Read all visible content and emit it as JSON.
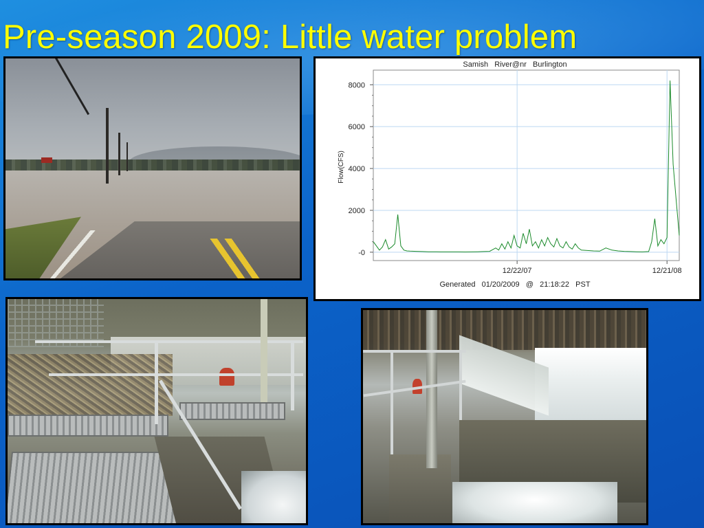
{
  "slide": {
    "title": "Pre-season 2009: Little water problem",
    "title_color": "#ffff00",
    "background_color": "#0b63c9"
  },
  "photos": [
    {
      "name": "flooded-road-photo"
    },
    {
      "name": "fish-ladder-walkway-photo"
    },
    {
      "name": "weir-overflow-photo"
    }
  ],
  "chart_data": {
    "type": "line",
    "title": "Samish   River@nr   Burlington",
    "ylabel": "Flow(CFS)",
    "xlabel": "",
    "footer": "Generated   01/20/2009   @   21:18:22   PST",
    "ylim": [
      -400,
      8700
    ],
    "yticks": [
      {
        "value": 0,
        "label": "-0"
      },
      {
        "value": 2000,
        "label": "2000"
      },
      {
        "value": 4000,
        "label": "4000"
      },
      {
        "value": 6000,
        "label": "6000"
      },
      {
        "value": 8000,
        "label": "8000"
      }
    ],
    "xlim": [
      0,
      100
    ],
    "xticks": [
      {
        "value": 47,
        "label": "12/22/07"
      },
      {
        "value": 96,
        "label": "12/21/08"
      }
    ],
    "grid": true,
    "line_color": "#1a8a2a",
    "grid_color": "#bcd8f2",
    "series": [
      {
        "x": [
          0,
          1,
          2,
          3,
          4,
          5,
          6,
          7,
          8,
          9,
          10,
          11,
          12,
          14,
          16,
          18,
          20,
          22,
          24,
          26,
          28,
          30,
          32,
          34,
          36,
          38,
          40,
          41,
          42,
          43,
          44,
          45,
          46,
          47,
          48,
          49,
          50,
          51,
          52,
          53,
          54,
          55,
          56,
          57,
          58,
          59,
          60,
          61,
          62,
          63,
          64,
          65,
          66,
          67,
          68,
          70,
          72,
          74,
          76,
          78,
          80,
          82,
          84,
          86,
          88,
          90,
          91,
          92,
          93,
          94,
          95,
          96,
          97,
          98,
          99,
          100
        ],
        "y": [
          500,
          300,
          100,
          250,
          600,
          150,
          250,
          400,
          1800,
          300,
          100,
          60,
          50,
          40,
          30,
          20,
          20,
          15,
          15,
          15,
          15,
          10,
          15,
          20,
          30,
          40,
          200,
          100,
          400,
          150,
          500,
          200,
          800,
          300,
          200,
          900,
          400,
          1100,
          300,
          500,
          200,
          600,
          300,
          700,
          400,
          250,
          650,
          300,
          200,
          500,
          250,
          150,
          400,
          200,
          100,
          80,
          60,
          50,
          200,
          100,
          60,
          40,
          30,
          20,
          15,
          30,
          500,
          1600,
          300,
          600,
          400,
          700,
          8200,
          4200,
          2500,
          800
        ]
      }
    ]
  }
}
